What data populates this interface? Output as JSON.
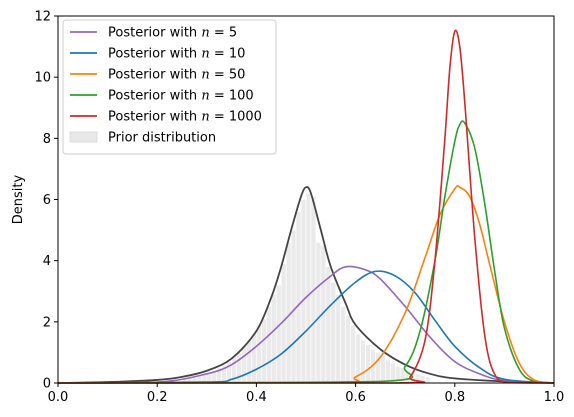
{
  "chart_data": {
    "type": "line",
    "title": "",
    "xlabel": "",
    "ylabel": "Density",
    "xlim": [
      0,
      1
    ],
    "ylim": [
      0,
      12
    ],
    "xticks": [
      0.0,
      0.2,
      0.4,
      0.6,
      0.8,
      1.0
    ],
    "xtick_labels": [
      "0.0",
      "0.2",
      "0.4",
      "0.6",
      "0.8",
      "1.0"
    ],
    "yticks": [
      0,
      2,
      4,
      6,
      8,
      10,
      12
    ],
    "ytick_labels": [
      "0",
      "2",
      "4",
      "6",
      "8",
      "10",
      "12"
    ],
    "grid": false,
    "legend_position": "top-left",
    "series": [
      {
        "name_prefix": "Posterior with ",
        "name_math": "n = 5",
        "color": "#9467bd",
        "x": [
          0.0,
          0.2,
          0.3,
          0.35,
          0.4,
          0.45,
          0.5,
          0.55,
          0.58,
          0.62,
          0.65,
          0.7,
          0.75,
          0.8,
          0.85,
          0.9,
          1.0
        ],
        "y": [
          0.0,
          0.03,
          0.3,
          0.6,
          1.2,
          1.95,
          2.8,
          3.5,
          3.8,
          3.7,
          3.4,
          2.5,
          1.5,
          0.7,
          0.3,
          0.08,
          0.0
        ]
      },
      {
        "name_prefix": "Posterior with ",
        "name_math": "n = 10",
        "color": "#1f77b4",
        "x": [
          0.0,
          0.3,
          0.35,
          0.4,
          0.45,
          0.5,
          0.55,
          0.6,
          0.64,
          0.68,
          0.72,
          0.76,
          0.8,
          0.85,
          0.9,
          1.0
        ],
        "y": [
          0.0,
          0.03,
          0.12,
          0.45,
          0.95,
          1.7,
          2.55,
          3.3,
          3.65,
          3.5,
          2.95,
          2.05,
          1.2,
          0.5,
          0.12,
          0.0
        ]
      },
      {
        "name_prefix": "Posterior with ",
        "name_math": "n = 50",
        "color": "#ff7f0e",
        "x": [
          0.0,
          0.55,
          0.6,
          0.65,
          0.7,
          0.74,
          0.77,
          0.8,
          0.81,
          0.83,
          0.85,
          0.87,
          0.9,
          0.93,
          0.96,
          1.0
        ],
        "y": [
          0.0,
          0.02,
          0.2,
          0.85,
          2.3,
          4.1,
          5.5,
          6.35,
          6.4,
          6.1,
          5.2,
          3.9,
          2.0,
          0.65,
          0.1,
          0.0
        ]
      },
      {
        "name_prefix": "Posterior with ",
        "name_math": "n = 100",
        "color": "#2ca02c",
        "x": [
          0.0,
          0.65,
          0.7,
          0.73,
          0.76,
          0.78,
          0.8,
          0.81,
          0.82,
          0.84,
          0.86,
          0.88,
          0.9,
          0.93,
          0.96,
          1.0
        ],
        "y": [
          0.0,
          0.05,
          0.55,
          1.7,
          4.0,
          6.1,
          7.9,
          8.45,
          8.5,
          7.7,
          5.9,
          3.7,
          1.8,
          0.45,
          0.05,
          0.0
        ]
      },
      {
        "name_prefix": "Posterior with ",
        "name_math": "n = 1000",
        "color": "#d62728",
        "x": [
          0.0,
          0.68,
          0.71,
          0.74,
          0.76,
          0.78,
          0.79,
          0.8,
          0.81,
          0.82,
          0.84,
          0.86,
          0.88,
          0.91,
          1.0
        ],
        "y": [
          0.0,
          0.0,
          0.2,
          1.4,
          4.0,
          8.0,
          10.3,
          11.5,
          11.0,
          9.2,
          4.8,
          1.6,
          0.3,
          0.02,
          0.0
        ]
      }
    ],
    "prior_curve": {
      "color": "#444444",
      "x": [
        0.0,
        0.1,
        0.2,
        0.25,
        0.3,
        0.35,
        0.4,
        0.43,
        0.45,
        0.47,
        0.49,
        0.5,
        0.51,
        0.53,
        0.55,
        0.58,
        0.6,
        0.65,
        0.7,
        0.75,
        0.8,
        0.9,
        1.0
      ],
      "y": [
        0.0,
        0.03,
        0.1,
        0.2,
        0.4,
        0.8,
        1.7,
        2.8,
        3.8,
        5.0,
        6.1,
        6.4,
        6.2,
        5.0,
        3.8,
        2.6,
        1.9,
        1.1,
        0.6,
        0.3,
        0.15,
        0.05,
        0.0
      ]
    },
    "prior_histogram": {
      "name": "Prior distribution",
      "color": "#d9d9d9",
      "bins": [
        [
          0.25,
          0.26,
          0.15
        ],
        [
          0.26,
          0.27,
          0.18
        ],
        [
          0.27,
          0.28,
          0.2
        ],
        [
          0.28,
          0.29,
          0.25
        ],
        [
          0.29,
          0.3,
          0.3
        ],
        [
          0.3,
          0.31,
          0.35
        ],
        [
          0.31,
          0.32,
          0.4
        ],
        [
          0.32,
          0.33,
          0.5
        ],
        [
          0.33,
          0.34,
          0.6
        ],
        [
          0.34,
          0.35,
          0.7
        ],
        [
          0.35,
          0.36,
          0.85
        ],
        [
          0.36,
          0.37,
          1.0
        ],
        [
          0.37,
          0.38,
          1.2
        ],
        [
          0.38,
          0.39,
          1.4
        ],
        [
          0.39,
          0.4,
          1.6
        ],
        [
          0.4,
          0.41,
          1.9
        ],
        [
          0.41,
          0.42,
          2.1
        ],
        [
          0.42,
          0.43,
          2.5
        ],
        [
          0.43,
          0.44,
          2.9
        ],
        [
          0.44,
          0.45,
          3.2
        ],
        [
          0.45,
          0.46,
          3.9
        ],
        [
          0.46,
          0.47,
          4.6
        ],
        [
          0.47,
          0.48,
          5.0
        ],
        [
          0.48,
          0.49,
          5.6
        ],
        [
          0.49,
          0.5,
          6.0
        ],
        [
          0.5,
          0.51,
          6.2
        ],
        [
          0.51,
          0.52,
          6.1
        ],
        [
          0.52,
          0.53,
          4.6
        ],
        [
          0.53,
          0.54,
          4.5
        ],
        [
          0.54,
          0.55,
          3.8
        ],
        [
          0.55,
          0.56,
          3.3
        ],
        [
          0.56,
          0.57,
          2.9
        ],
        [
          0.57,
          0.58,
          2.5
        ],
        [
          0.58,
          0.59,
          2.2
        ],
        [
          0.59,
          0.6,
          1.9
        ],
        [
          0.6,
          0.61,
          1.6
        ],
        [
          0.61,
          0.62,
          1.4
        ],
        [
          0.62,
          0.63,
          1.25
        ],
        [
          0.63,
          0.64,
          1.1
        ],
        [
          0.64,
          0.65,
          1.0
        ],
        [
          0.65,
          0.66,
          0.9
        ],
        [
          0.66,
          0.67,
          0.75
        ],
        [
          0.67,
          0.68,
          0.65
        ],
        [
          0.68,
          0.69,
          0.55
        ],
        [
          0.69,
          0.7,
          0.5
        ],
        [
          0.7,
          0.71,
          0.4
        ],
        [
          0.71,
          0.72,
          0.35
        ],
        [
          0.72,
          0.73,
          0.3
        ],
        [
          0.73,
          0.74,
          0.25
        ],
        [
          0.74,
          0.75,
          0.2
        ]
      ]
    }
  }
}
